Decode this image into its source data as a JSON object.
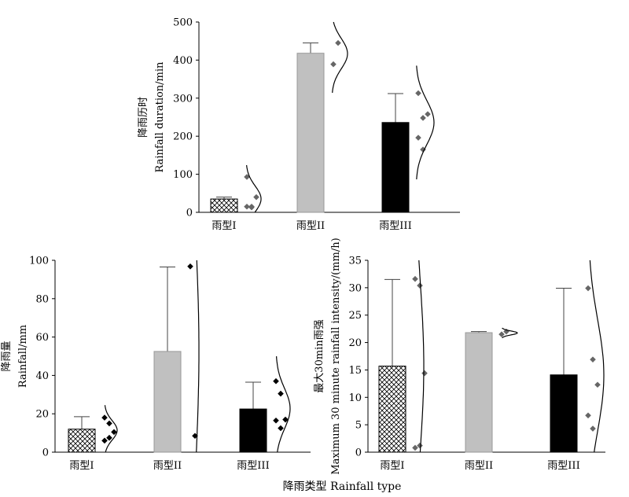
{
  "figure": {
    "shared_xlabel": "降雨类型 Rainfall type"
  },
  "chart_data": [
    {
      "type": "bar",
      "panel": "top",
      "categories": [
        "雨型I",
        "雨型II",
        "雨型III"
      ],
      "values": [
        35,
        418,
        236
      ],
      "error_upper": [
        40,
        445,
        312
      ],
      "points": [
        [
          15,
          15,
          40,
          93,
          13
        ],
        [
          389,
          445
        ],
        [
          313,
          248,
          258,
          196,
          165
        ]
      ],
      "ylabel_lines": [
        "降雨历时",
        "Rainfall duration/min"
      ],
      "ylim": [
        0,
        500
      ],
      "yticks": [
        0,
        100,
        200,
        300,
        400,
        500
      ],
      "grid": false,
      "fill_styles": [
        "crosshatch",
        "lightgray",
        "black"
      ],
      "colors": {
        "bar2": "#c0c0c0",
        "bar3": "#000000",
        "points": "#666666"
      }
    },
    {
      "type": "bar",
      "panel": "bottom-left",
      "categories": [
        "雨型I",
        "雨型II",
        "雨型III"
      ],
      "values": [
        12,
        52.5,
        22.5
      ],
      "error_upper": [
        18.5,
        96.5,
        36.5
      ],
      "points": [
        [
          18,
          15,
          10.5,
          6,
          7.5
        ],
        [
          96.8,
          8.5
        ],
        [
          37,
          30.5,
          17,
          16.5,
          12.5
        ]
      ],
      "ylabel_lines": [
        "降雨量",
        "Rainfall/mm"
      ],
      "ylim": [
        0,
        100
      ],
      "yticks": [
        0,
        20,
        40,
        60,
        80,
        100
      ],
      "grid": false,
      "fill_styles": [
        "crosshatch",
        "lightgray",
        "black"
      ],
      "colors": {
        "bar2": "#c0c0c0",
        "bar3": "#000000",
        "points": "#000000"
      }
    },
    {
      "type": "bar",
      "panel": "bottom-right",
      "categories": [
        "雨型I",
        "雨型II",
        "雨型III"
      ],
      "values": [
        15.7,
        21.8,
        14.1
      ],
      "error_upper": [
        31.5,
        22.0,
        29.9
      ],
      "points": [
        [
          31.6,
          30.4,
          14.4,
          0.8,
          1.2
        ],
        [
          21.5,
          22.0
        ],
        [
          29.9,
          16.9,
          12.3,
          6.7,
          4.3
        ]
      ],
      "ylabel_lines": [
        "最大30min雨强",
        "Maximum 30 minute rainfall intensity/(mm/h)"
      ],
      "ylim": [
        0,
        35
      ],
      "yticks": [
        0,
        5,
        10,
        15,
        20,
        25,
        30,
        35
      ],
      "grid": false,
      "fill_styles": [
        "crosshatch",
        "lightgray",
        "black"
      ],
      "colors": {
        "bar2": "#c0c0c0",
        "bar3": "#000000",
        "points": "#666666"
      }
    }
  ]
}
